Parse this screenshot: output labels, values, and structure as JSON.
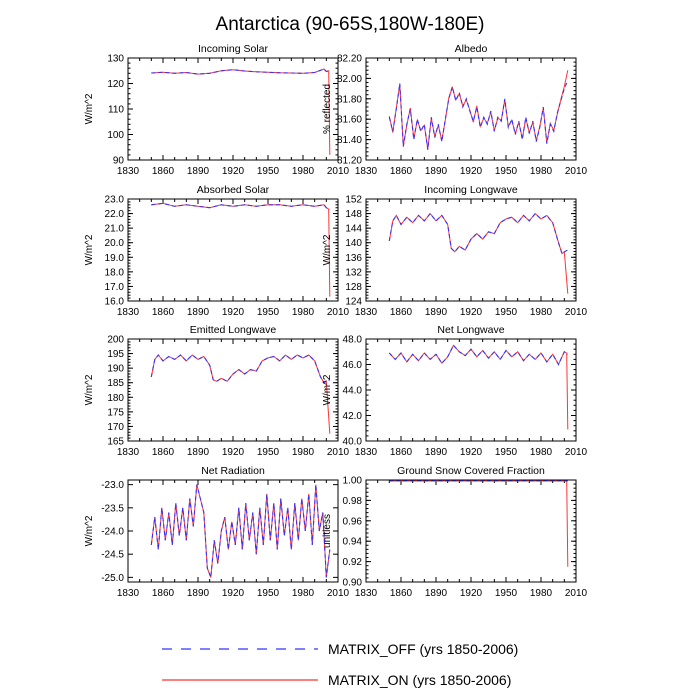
{
  "title": "Antarctica (90-65S,180W-180E)",
  "colors": {
    "matrix_off": "#3333ff",
    "matrix_on": "#ff3333"
  },
  "legend": {
    "position": "bottom-center",
    "entries": [
      {
        "label": "MATRIX_OFF (yrs 1850-2006)",
        "style": "dashed",
        "color": "#3333ff"
      },
      {
        "label": "MATRIX_ON (yrs 1850-2006)",
        "style": "solid",
        "color": "#ff3333"
      }
    ]
  },
  "chart_data": [
    {
      "type": "line",
      "title": "Incoming Solar",
      "ylabel": "W/m^2",
      "xlim": [
        1830,
        2010
      ],
      "ylim": [
        90,
        130
      ],
      "xticks": [
        "1830",
        "1860",
        "1890",
        "1920",
        "1950",
        "1980",
        "2010"
      ],
      "yticks": [
        "90",
        "100",
        "110",
        "120",
        "130"
      ],
      "x": [
        1850,
        1860,
        1870,
        1880,
        1890,
        1900,
        1910,
        1920,
        1930,
        1940,
        1950,
        1960,
        1970,
        1980,
        1990,
        1998,
        2000,
        2002,
        2003
      ],
      "series": [
        {
          "name": "MATRIX_OFF",
          "values": [
            124.1,
            124.4,
            124.0,
            124.3,
            123.7,
            124.0,
            125.0,
            125.4,
            124.9,
            124.6,
            124.4,
            124.2,
            124.1,
            124.0,
            124.3,
            125.7,
            124.7,
            125.0,
            125.0
          ]
        },
        {
          "name": "MATRIX_ON",
          "values": [
            124.1,
            124.4,
            124.0,
            124.3,
            123.7,
            124.0,
            125.0,
            125.4,
            124.9,
            124.6,
            124.4,
            124.2,
            124.1,
            124.0,
            124.3,
            125.7,
            124.7,
            125.0,
            92.0
          ]
        }
      ]
    },
    {
      "type": "line",
      "title": "Albedo",
      "ylabel": "% reflected",
      "xlim": [
        1830,
        2010
      ],
      "ylim": [
        81.2,
        82.2
      ],
      "xticks": [
        "1830",
        "1860",
        "1890",
        "1920",
        "1950",
        "1980",
        "2010"
      ],
      "yticks": [
        "81.20",
        "81.40",
        "81.60",
        "81.80",
        "82.00",
        "82.20"
      ],
      "x": [
        1850,
        1853,
        1856,
        1859,
        1862,
        1865,
        1868,
        1871,
        1874,
        1877,
        1880,
        1883,
        1886,
        1889,
        1892,
        1895,
        1898,
        1901,
        1904,
        1907,
        1910,
        1913,
        1916,
        1919,
        1922,
        1925,
        1928,
        1931,
        1934,
        1937,
        1940,
        1943,
        1946,
        1949,
        1952,
        1955,
        1958,
        1961,
        1964,
        1967,
        1970,
        1973,
        1976,
        1979,
        1982,
        1985,
        1988,
        1991,
        1994,
        1997,
        2000,
        2003
      ],
      "series": [
        {
          "name": "MATRIX_OFF",
          "values": [
            81.62,
            81.48,
            81.7,
            81.95,
            81.33,
            81.55,
            81.7,
            81.4,
            81.6,
            81.48,
            81.55,
            81.3,
            81.62,
            81.42,
            81.55,
            81.38,
            81.6,
            81.8,
            81.92,
            81.78,
            81.86,
            81.72,
            81.8,
            81.68,
            81.58,
            81.72,
            81.52,
            81.62,
            81.55,
            81.68,
            81.48,
            81.62,
            81.58,
            81.8,
            81.52,
            81.6,
            81.45,
            81.58,
            81.4,
            81.62,
            81.46,
            81.58,
            81.38,
            81.52,
            81.72,
            81.36,
            81.55,
            81.48,
            81.66,
            81.78,
            81.9,
            81.98
          ]
        },
        {
          "name": "MATRIX_ON",
          "values": [
            81.63,
            81.47,
            81.71,
            81.94,
            81.34,
            81.54,
            81.71,
            81.41,
            81.59,
            81.49,
            81.54,
            81.31,
            81.61,
            81.43,
            81.54,
            81.39,
            81.59,
            81.81,
            81.91,
            81.79,
            81.85,
            81.73,
            81.79,
            81.69,
            81.57,
            81.73,
            81.53,
            81.61,
            81.56,
            81.67,
            81.49,
            81.61,
            81.59,
            81.79,
            81.53,
            81.59,
            81.46,
            81.57,
            81.41,
            81.61,
            81.47,
            81.57,
            81.39,
            81.53,
            81.71,
            81.37,
            81.56,
            81.49,
            81.65,
            81.79,
            81.92,
            82.08
          ]
        }
      ]
    },
    {
      "type": "line",
      "title": "Absorbed Solar",
      "ylabel": "W/m^2",
      "xlim": [
        1830,
        2010
      ],
      "ylim": [
        16.0,
        23.0
      ],
      "xticks": [
        "1830",
        "1860",
        "1890",
        "1920",
        "1950",
        "1980",
        "2010"
      ],
      "yticks": [
        "16.0",
        "17.0",
        "18.0",
        "19.0",
        "20.0",
        "21.0",
        "22.0",
        "23.0"
      ],
      "x": [
        1850,
        1860,
        1870,
        1880,
        1890,
        1900,
        1910,
        1920,
        1930,
        1940,
        1950,
        1960,
        1970,
        1980,
        1990,
        1998,
        2000,
        2002,
        2003
      ],
      "series": [
        {
          "name": "MATRIX_OFF",
          "values": [
            22.6,
            22.7,
            22.5,
            22.6,
            22.5,
            22.4,
            22.6,
            22.5,
            22.6,
            22.5,
            22.6,
            22.6,
            22.5,
            22.6,
            22.5,
            22.6,
            22.4,
            22.3,
            22.3
          ]
        },
        {
          "name": "MATRIX_ON",
          "values": [
            22.6,
            22.7,
            22.5,
            22.6,
            22.5,
            22.4,
            22.6,
            22.5,
            22.6,
            22.5,
            22.6,
            22.6,
            22.5,
            22.6,
            22.5,
            22.6,
            22.4,
            22.3,
            16.3
          ]
        }
      ]
    },
    {
      "type": "line",
      "title": "Incoming Longwave",
      "ylabel": "W/m^2",
      "xlim": [
        1830,
        2010
      ],
      "ylim": [
        124,
        152
      ],
      "xticks": [
        "1830",
        "1860",
        "1890",
        "1920",
        "1950",
        "1980",
        "2010"
      ],
      "yticks": [
        "124",
        "128",
        "132",
        "136",
        "140",
        "144",
        "148",
        "152"
      ],
      "x": [
        1850,
        1853,
        1856,
        1860,
        1865,
        1870,
        1875,
        1880,
        1885,
        1890,
        1895,
        1900,
        1903,
        1906,
        1910,
        1915,
        1920,
        1925,
        1930,
        1935,
        1940,
        1945,
        1950,
        1955,
        1960,
        1965,
        1970,
        1975,
        1980,
        1985,
        1990,
        1995,
        1998,
        2000,
        2003
      ],
      "series": [
        {
          "name": "MATRIX_OFF",
          "values": [
            140.5,
            146.0,
            147.5,
            145.0,
            147.0,
            145.5,
            147.5,
            146.0,
            148.0,
            146.0,
            147.5,
            145.0,
            138.5,
            137.5,
            139.0,
            138.0,
            141.0,
            142.5,
            141.0,
            143.0,
            142.5,
            145.5,
            146.5,
            147.0,
            145.5,
            147.5,
            146.0,
            148.0,
            146.5,
            147.5,
            145.5,
            140.0,
            137.0,
            137.5,
            138.0
          ]
        },
        {
          "name": "MATRIX_ON",
          "values": [
            140.5,
            146.0,
            147.5,
            145.0,
            147.0,
            145.5,
            147.5,
            146.0,
            148.0,
            146.0,
            147.5,
            145.0,
            138.5,
            137.5,
            139.0,
            138.0,
            141.0,
            142.5,
            141.0,
            143.0,
            142.5,
            145.5,
            146.5,
            147.0,
            145.5,
            147.5,
            146.0,
            148.0,
            146.5,
            147.5,
            145.5,
            140.0,
            137.0,
            137.5,
            126.0
          ]
        }
      ]
    },
    {
      "type": "line",
      "title": "Emitted Longwave",
      "ylabel": "W/m^2",
      "xlim": [
        1830,
        2010
      ],
      "ylim": [
        165,
        200
      ],
      "xticks": [
        "1830",
        "1860",
        "1890",
        "1920",
        "1950",
        "1980",
        "2010"
      ],
      "yticks": [
        "165",
        "170",
        "175",
        "180",
        "185",
        "190",
        "195",
        "200"
      ],
      "x": [
        1850,
        1853,
        1856,
        1860,
        1865,
        1870,
        1875,
        1880,
        1885,
        1890,
        1895,
        1900,
        1903,
        1906,
        1910,
        1915,
        1920,
        1925,
        1930,
        1935,
        1940,
        1945,
        1950,
        1955,
        1960,
        1965,
        1970,
        1975,
        1980,
        1985,
        1990,
        1995,
        1998,
        2000,
        2003
      ],
      "series": [
        {
          "name": "MATRIX_OFF",
          "values": [
            187.0,
            193.0,
            194.5,
            192.5,
            194.0,
            193.0,
            194.5,
            192.5,
            194.5,
            193.0,
            194.0,
            191.0,
            186.0,
            185.5,
            186.5,
            185.5,
            188.0,
            189.5,
            188.0,
            189.5,
            189.0,
            192.5,
            193.5,
            194.0,
            192.5,
            194.5,
            193.0,
            194.5,
            193.5,
            194.5,
            192.5,
            187.0,
            185.0,
            185.5,
            186.0
          ]
        },
        {
          "name": "MATRIX_ON",
          "values": [
            187.0,
            193.0,
            194.5,
            192.5,
            194.0,
            193.0,
            194.5,
            192.5,
            194.5,
            193.0,
            194.0,
            191.0,
            186.0,
            185.5,
            186.5,
            185.5,
            188.0,
            189.5,
            188.0,
            189.5,
            189.0,
            192.5,
            193.5,
            194.0,
            192.5,
            194.5,
            193.0,
            194.5,
            193.5,
            194.5,
            192.5,
            187.0,
            185.0,
            185.5,
            167.5
          ]
        }
      ]
    },
    {
      "type": "line",
      "title": "Net Longwave",
      "ylabel": "W/m^2",
      "xlim": [
        1830,
        2010
      ],
      "ylim": [
        40.0,
        48.0
      ],
      "xticks": [
        "1830",
        "1860",
        "1890",
        "1920",
        "1950",
        "1980",
        "2010"
      ],
      "yticks": [
        "40.0",
        "42.0",
        "44.0",
        "46.0",
        "48.0"
      ],
      "x": [
        1850,
        1855,
        1860,
        1865,
        1870,
        1875,
        1880,
        1885,
        1890,
        1895,
        1900,
        1905,
        1910,
        1915,
        1920,
        1925,
        1930,
        1935,
        1940,
        1945,
        1950,
        1955,
        1960,
        1965,
        1970,
        1975,
        1980,
        1985,
        1990,
        1995,
        1998,
        2000,
        2002,
        2003
      ],
      "series": [
        {
          "name": "MATRIX_OFF",
          "values": [
            46.9,
            46.4,
            46.9,
            46.2,
            46.8,
            46.3,
            46.9,
            46.4,
            46.8,
            46.1,
            46.6,
            47.5,
            47.0,
            46.7,
            47.2,
            46.6,
            47.1,
            46.5,
            47.0,
            46.4,
            47.1,
            46.6,
            47.0,
            46.3,
            46.8,
            46.4,
            46.9,
            46.2,
            46.8,
            46.0,
            46.6,
            47.0,
            46.9,
            46.8
          ]
        },
        {
          "name": "MATRIX_ON",
          "values": [
            46.9,
            46.4,
            46.9,
            46.2,
            46.8,
            46.3,
            46.9,
            46.4,
            46.8,
            46.1,
            46.6,
            47.5,
            47.0,
            46.7,
            47.2,
            46.6,
            47.1,
            46.5,
            47.0,
            46.4,
            47.1,
            46.6,
            47.0,
            46.3,
            46.8,
            46.4,
            46.9,
            46.2,
            46.8,
            46.0,
            46.6,
            47.0,
            46.9,
            40.9
          ]
        }
      ]
    },
    {
      "type": "line",
      "title": "Net Radiation",
      "ylabel": "W/m^2",
      "xlim": [
        1830,
        2010
      ],
      "ylim": [
        -25.1,
        -22.9
      ],
      "xticks": [
        "1830",
        "1860",
        "1890",
        "1920",
        "1950",
        "1980",
        "2010"
      ],
      "yticks": [
        "-23.0",
        "-23.5",
        "-24.0",
        "-24.5",
        "-25.0"
      ],
      "x": [
        1850,
        1853,
        1856,
        1859,
        1862,
        1865,
        1868,
        1871,
        1874,
        1877,
        1880,
        1883,
        1886,
        1889,
        1892,
        1895,
        1898,
        1901,
        1904,
        1907,
        1910,
        1913,
        1916,
        1919,
        1922,
        1925,
        1928,
        1931,
        1934,
        1937,
        1940,
        1943,
        1946,
        1949,
        1952,
        1955,
        1958,
        1961,
        1964,
        1967,
        1970,
        1973,
        1976,
        1979,
        1982,
        1985,
        1988,
        1991,
        1994,
        1997,
        2000,
        2003
      ],
      "series": [
        {
          "name": "MATRIX_OFF",
          "values": [
            -24.3,
            -23.7,
            -24.4,
            -23.5,
            -24.2,
            -23.6,
            -24.3,
            -23.4,
            -24.1,
            -23.5,
            -24.2,
            -23.3,
            -23.9,
            -23.0,
            -23.3,
            -23.6,
            -24.8,
            -25.0,
            -24.2,
            -24.7,
            -24.0,
            -23.7,
            -24.4,
            -23.8,
            -24.3,
            -23.5,
            -24.4,
            -23.4,
            -24.2,
            -23.6,
            -24.5,
            -23.5,
            -24.3,
            -23.2,
            -24.2,
            -23.4,
            -24.4,
            -23.3,
            -24.1,
            -23.5,
            -24.4,
            -23.4,
            -24.2,
            -23.3,
            -24.0,
            -23.2,
            -24.3,
            -23.0,
            -24.0,
            -23.6,
            -25.0,
            -24.4
          ]
        },
        {
          "name": "MATRIX_ON",
          "values": [
            -24.3,
            -23.7,
            -24.4,
            -23.5,
            -24.2,
            -23.6,
            -24.3,
            -23.4,
            -24.1,
            -23.5,
            -24.2,
            -23.3,
            -23.9,
            -23.0,
            -23.3,
            -23.6,
            -24.8,
            -25.0,
            -24.2,
            -24.7,
            -24.0,
            -23.7,
            -24.4,
            -23.8,
            -24.3,
            -23.5,
            -24.4,
            -23.4,
            -24.2,
            -23.6,
            -24.5,
            -23.5,
            -24.3,
            -23.2,
            -24.2,
            -23.4,
            -24.4,
            -23.3,
            -24.1,
            -23.5,
            -24.4,
            -23.4,
            -24.2,
            -23.3,
            -24.0,
            -23.2,
            -24.3,
            -23.0,
            -24.0,
            -23.6,
            -25.0,
            -24.4
          ]
        }
      ]
    },
    {
      "type": "line",
      "title": "Ground Snow Covered Fraction",
      "ylabel": "unitless",
      "xlim": [
        1830,
        2010
      ],
      "ylim": [
        0.9,
        1.0
      ],
      "xticks": [
        "1830",
        "1860",
        "1890",
        "1920",
        "1950",
        "1980",
        "2010"
      ],
      "yticks": [
        "0.90",
        "0.92",
        "0.94",
        "0.96",
        "0.98",
        "1.00"
      ],
      "x": [
        1850,
        1900,
        1950,
        2000,
        2002,
        2003
      ],
      "series": [
        {
          "name": "MATRIX_OFF",
          "values": [
            0.999,
            0.999,
            0.999,
            0.999,
            0.999,
            0.999
          ]
        },
        {
          "name": "MATRIX_ON",
          "values": [
            0.999,
            0.999,
            0.999,
            0.999,
            0.999,
            0.915
          ]
        }
      ]
    }
  ]
}
